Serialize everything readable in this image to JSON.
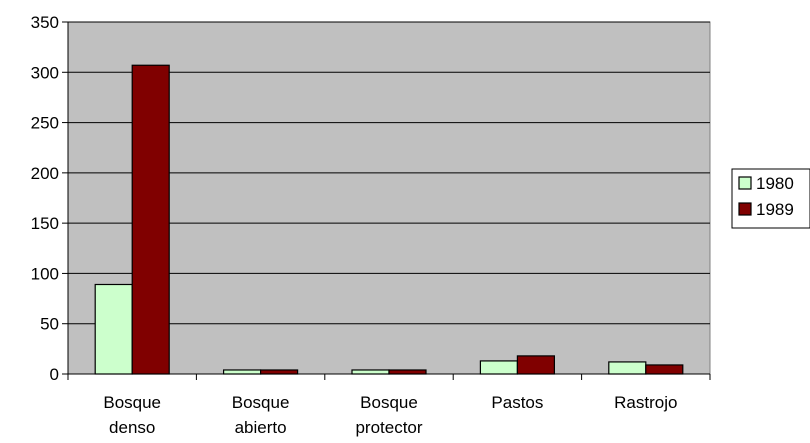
{
  "chart_data": {
    "type": "bar",
    "categories": [
      [
        "Bosque",
        "denso"
      ],
      [
        "Bosque",
        "abierto"
      ],
      [
        "Bosque",
        "protector"
      ],
      [
        "Pastos"
      ],
      [
        "Rastrojo"
      ]
    ],
    "series": [
      {
        "name": "1980",
        "values": [
          89,
          4,
          4,
          13,
          12
        ],
        "color": "#ccffcc"
      },
      {
        "name": "1989",
        "values": [
          307,
          4,
          4,
          18,
          9
        ],
        "color": "#800000"
      }
    ],
    "ylim": [
      0,
      350
    ],
    "yticks": [
      0,
      50,
      100,
      150,
      200,
      250,
      300,
      350
    ],
    "grid": true,
    "plot_background": "#c0c0c0",
    "legend_position": "right"
  }
}
